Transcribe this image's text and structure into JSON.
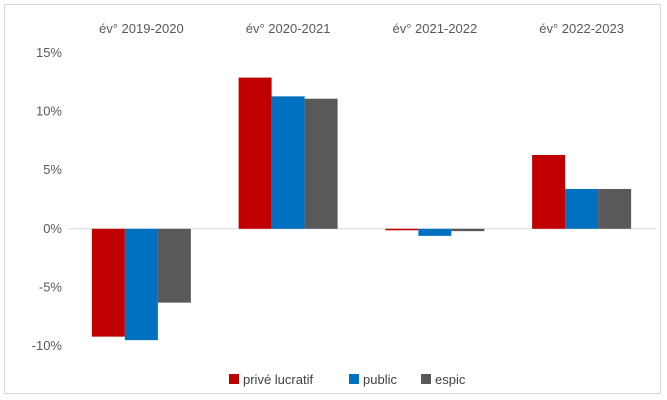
{
  "chart_data": {
    "type": "bar",
    "categories": [
      "év° 2019-2020",
      "év° 2020-2021",
      "év° 2021-2022",
      "év° 2022-2023"
    ],
    "series": [
      {
        "name": "privé lucratif",
        "color": "#c00000",
        "values": [
          -9.2,
          12.9,
          -0.1,
          6.3
        ]
      },
      {
        "name": "public",
        "color": "#0070c0",
        "values": [
          -9.5,
          11.3,
          -0.6,
          3.4
        ]
      },
      {
        "name": "espic",
        "color": "#595959",
        "values": [
          -6.3,
          11.1,
          -0.2,
          3.4
        ]
      }
    ],
    "yticks": [
      "15%",
      "10%",
      "5%",
      "0%",
      "-5%",
      "-10%"
    ],
    "ytick_values": [
      15,
      10,
      5,
      0,
      -5,
      -10
    ],
    "ylim": [
      -10,
      15
    ],
    "grid": false,
    "legend_position": "bottom",
    "category_labels_position": "top"
  }
}
